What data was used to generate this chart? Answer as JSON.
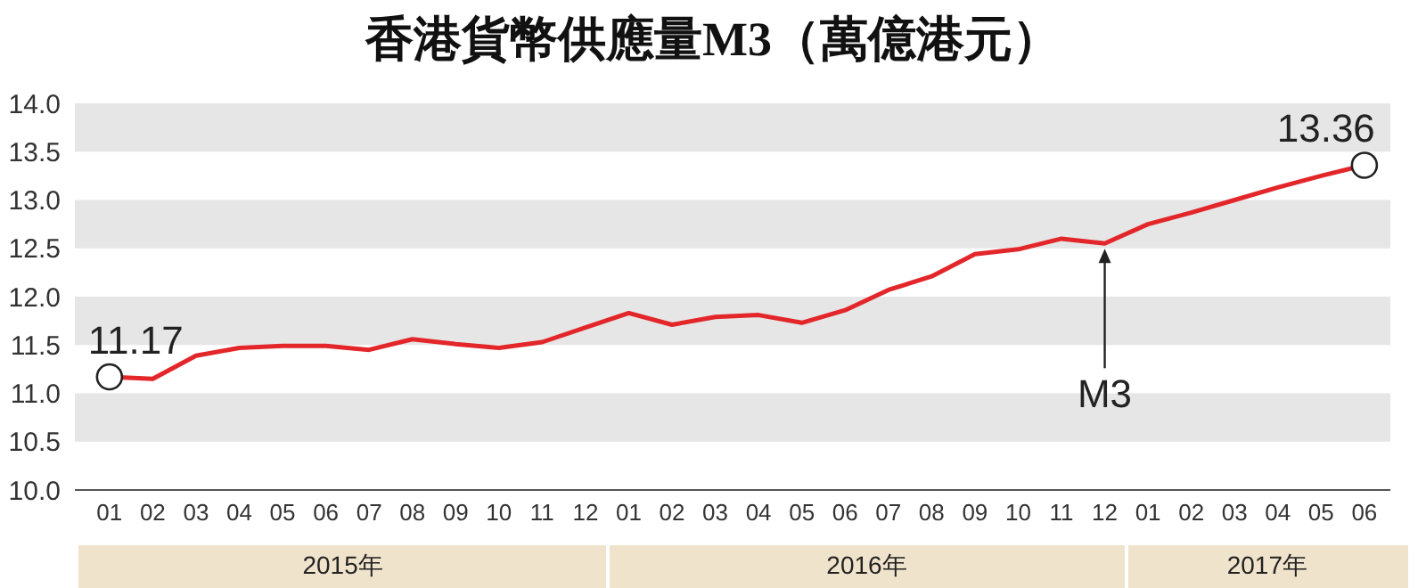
{
  "chart_data": {
    "type": "line",
    "title": "香港貨幣供應量M3（萬億港元）",
    "categories": [
      "01",
      "02",
      "03",
      "04",
      "05",
      "06",
      "07",
      "08",
      "09",
      "10",
      "11",
      "12",
      "01",
      "02",
      "03",
      "04",
      "05",
      "06",
      "07",
      "08",
      "09",
      "10",
      "11",
      "12",
      "01",
      "02",
      "03",
      "04",
      "05",
      "06"
    ],
    "series": [
      {
        "name": "M3",
        "color": "#e3262a",
        "values": [
          11.17,
          11.15,
          11.39,
          11.47,
          11.49,
          11.49,
          11.45,
          11.56,
          11.51,
          11.47,
          11.53,
          11.68,
          11.83,
          11.71,
          11.79,
          11.81,
          11.73,
          11.86,
          12.07,
          12.21,
          12.44,
          12.49,
          12.6,
          12.55,
          12.75,
          12.87,
          13.0,
          13.13,
          13.25,
          13.36
        ],
        "value_labels": [
          "11.17",
          null,
          null,
          null,
          null,
          null,
          null,
          null,
          null,
          null,
          null,
          null,
          null,
          null,
          null,
          null,
          null,
          null,
          null,
          null,
          null,
          null,
          null,
          null,
          null,
          null,
          null,
          null,
          null,
          "13.36"
        ]
      }
    ],
    "ylim": [
      10.0,
      14.0
    ],
    "yticks": [
      {
        "value": 10,
        "label": "10.0"
      },
      {
        "value": 10.5,
        "label": "10.5"
      },
      {
        "value": 11,
        "label": "11.0"
      },
      {
        "value": 11.5,
        "label": "11.5"
      },
      {
        "value": 12,
        "label": "12.0"
      },
      {
        "value": 12.5,
        "label": "12.5"
      },
      {
        "value": 13,
        "label": "13.0"
      },
      {
        "value": 13.5,
        "label": "13.5"
      },
      {
        "value": 14,
        "label": "14.0"
      }
    ],
    "bands": [
      {
        "axis": "y",
        "from": 10.5,
        "to": 11.0,
        "color": "#e6e6e6"
      },
      {
        "axis": "y",
        "from": 11.5,
        "to": 12.0,
        "color": "#e6e6e6"
      },
      {
        "axis": "y",
        "from": 12.5,
        "to": 13.0,
        "color": "#e6e6e6"
      },
      {
        "axis": "y",
        "from": 13.5,
        "to": 14.0,
        "color": "#e6e6e6"
      }
    ],
    "annotations": [
      "2015年",
      "2016年",
      "2017年"
    ],
    "grid": false,
    "legend": false
  }
}
